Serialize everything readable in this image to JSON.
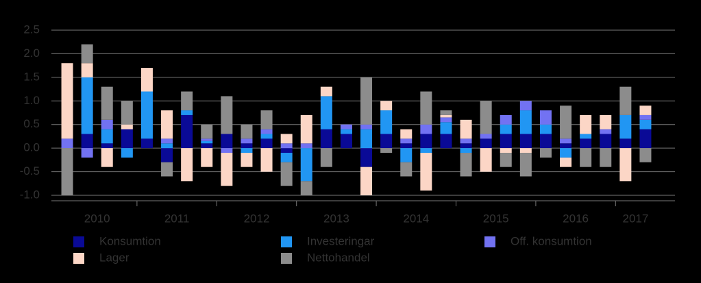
{
  "chart_data": {
    "type": "stacked_bar",
    "categories": [
      "2010",
      null,
      null,
      null,
      "2011",
      null,
      null,
      null,
      "2012",
      null,
      null,
      null,
      "2013",
      null,
      null,
      null,
      "2014",
      null,
      null,
      null,
      "2015",
      null,
      null,
      null,
      "2016",
      null,
      null,
      null,
      "2017",
      null
    ],
    "series": [
      {
        "name": "Konsumtion",
        "color": "#0a0a96",
        "values": [
          0,
          0.3,
          0.1,
          0.4,
          0.2,
          -0.3,
          0.7,
          0.1,
          0.3,
          0.1,
          0.2,
          -0.1,
          0,
          0.4,
          0.3,
          -0.4,
          0.3,
          0.1,
          0.3,
          0.3,
          0.1,
          0.2,
          0.3,
          0.3,
          0.3,
          0.1,
          0.2,
          0.3,
          0.2,
          0.4
        ]
      },
      {
        "name": "Investeringar",
        "color": "#2196f3",
        "values": [
          0,
          1.2,
          0.3,
          -0.2,
          1.0,
          0.1,
          0.1,
          0.05,
          0,
          -0.1,
          0.1,
          -0.2,
          -0.7,
          0.7,
          0.1,
          0.4,
          0.5,
          -0.3,
          -0.1,
          0.25,
          -0.1,
          0,
          0.2,
          0.5,
          0.2,
          -0.2,
          0.1,
          0,
          0.5,
          0.2
        ]
      },
      {
        "name": "Off. konsumtion",
        "color": "#7272f2",
        "values": [
          0.2,
          -0.2,
          0.2,
          0,
          0,
          0.1,
          0,
          0.05,
          -0.1,
          0.1,
          0.1,
          0.1,
          0.1,
          0,
          0.1,
          0.1,
          0,
          0.1,
          0.2,
          0.1,
          0.1,
          0.1,
          0.2,
          0.2,
          0.3,
          0.1,
          0,
          0.1,
          0,
          0.1
        ]
      },
      {
        "name": "Lager",
        "color": "#fcd6c6",
        "values": [
          1.6,
          0.3,
          -0.4,
          0.1,
          0.5,
          0.6,
          -0.7,
          -0.4,
          -0.7,
          -0.3,
          -0.5,
          0.2,
          0.6,
          0.2,
          0,
          -0.6,
          0.2,
          0.2,
          -0.8,
          0.05,
          0.4,
          -0.5,
          -0.1,
          -0.1,
          0,
          -0.2,
          0.4,
          0.3,
          -0.7,
          0.2
        ]
      },
      {
        "name": "Nettohandel",
        "color": "#8c8c8c",
        "values": [
          -1.0,
          0.4,
          0.7,
          0.5,
          0,
          -0.3,
          0.4,
          0.3,
          0.8,
          0.3,
          0.4,
          -0.5,
          -0.3,
          -0.4,
          0,
          1.0,
          -0.1,
          -0.3,
          0.7,
          0.1,
          -0.5,
          0.7,
          -0.3,
          -0.5,
          -0.2,
          0.7,
          -0.4,
          -0.4,
          0.6,
          -0.3
        ]
      }
    ],
    "ylim": [
      -1.0,
      2.5
    ],
    "yticks": [
      {
        "value": -1.0,
        "label": "-1.0"
      },
      {
        "value": -0.5,
        "label": "-0.5"
      },
      {
        "value": 0,
        "label": "0.0"
      },
      {
        "value": 0.5,
        "label": "0.5"
      },
      {
        "value": 1.0,
        "label": "1.0"
      },
      {
        "value": 1.5,
        "label": "1.5"
      },
      {
        "value": 2.0,
        "label": "2.0"
      },
      {
        "value": 2.5,
        "label": "2.5"
      }
    ],
    "grid": true
  }
}
